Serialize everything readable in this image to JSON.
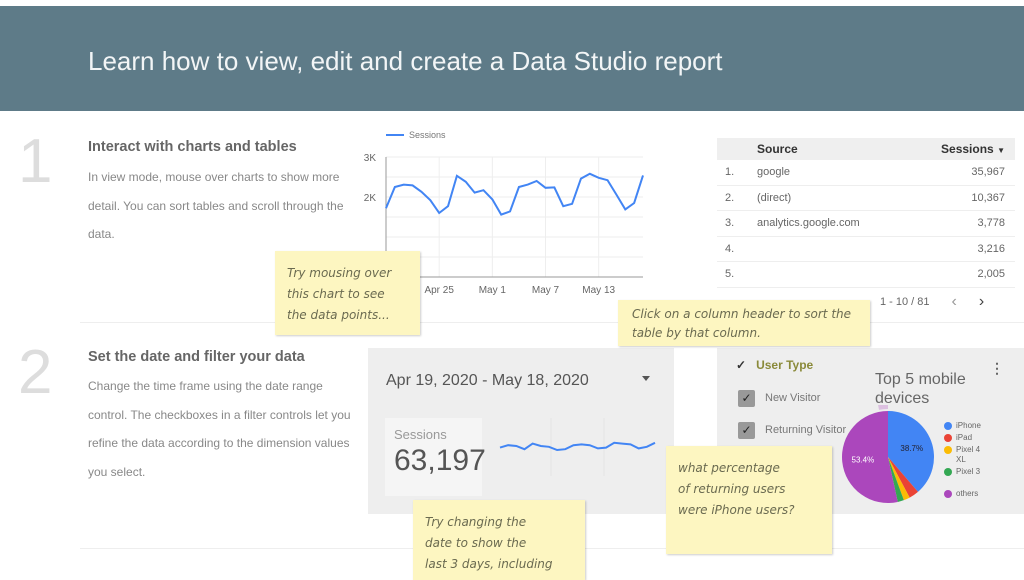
{
  "header": {
    "title": "Learn how  to view, edit and create a Data Studio report"
  },
  "sections": [
    {
      "number": "1",
      "title": "Interact with charts and tables",
      "text": "In view mode, mouse over charts to show more detail. You can sort tables and scroll through the data."
    },
    {
      "number": "2",
      "title": "Set the date and filter your data",
      "text": "Change the time frame using the date range control. The checkboxes in a filter controls let you refine the data according to the dimension values you select."
    }
  ],
  "chart_data": [
    {
      "type": "line",
      "legend": "Sessions",
      "series": [
        {
          "name": "Sessions",
          "color": "#4285f4",
          "values": [
            1720,
            2250,
            2310,
            2290,
            2130,
            1920,
            1600,
            1770,
            2530,
            2380,
            2110,
            2170,
            1940,
            1560,
            1640,
            2250,
            2310,
            2400,
            2230,
            2240,
            1770,
            1830,
            2460,
            2580,
            2480,
            2420,
            2060,
            1690,
            1850,
            2540
          ]
        }
      ],
      "x_dates": "Apr 19 - May 18",
      "x_tick_labels": [
        "Apr 25",
        "May 1",
        "May 7",
        "May 13"
      ],
      "y_tick_labels": [
        "3K",
        "2K"
      ],
      "ylim": [
        0,
        3000
      ],
      "grid": true
    },
    {
      "type": "pie",
      "title": "Top 5 mobile devices",
      "slices": [
        {
          "label": "iPhone",
          "value": 38.7,
          "color": "#4285f4",
          "data_label": "38.7%"
        },
        {
          "label": "iPad",
          "value": 3.5,
          "color": "#ea4335"
        },
        {
          "label": "Pixel 4 XL",
          "value": 2.2,
          "color": "#fbbc04"
        },
        {
          "label": "Pixel 3",
          "value": 2.2,
          "color": "#34a853"
        },
        {
          "label": "others",
          "value": 53.4,
          "color": "#ab47bc",
          "data_label": "53.4%"
        }
      ],
      "legend": "right"
    }
  ],
  "table": {
    "headers": [
      "Source",
      "Sessions"
    ],
    "sort_icon": "caret-down-icon",
    "rows": [
      [
        "1.",
        "google",
        "35,967"
      ],
      [
        "2.",
        "(direct)",
        "10,367"
      ],
      [
        "3.",
        "analytics.google.com",
        "3,778"
      ],
      [
        "4.",
        "",
        "3,216"
      ],
      [
        "5.",
        "",
        "2,005"
      ]
    ],
    "pagination": "1 - 10 / 81"
  },
  "date_range": {
    "value": "Apr 19, 2020 - May 18, 2020"
  },
  "scorecard": {
    "label": "Sessions",
    "value": "63,197"
  },
  "sparkline": [
    1.9,
    2.05,
    2.0,
    1.8,
    2.15,
    2.0,
    1.95,
    1.75,
    1.8,
    2.05,
    2.1,
    2.05,
    1.85,
    1.9,
    2.2,
    2.15,
    2.1,
    1.85,
    1.95,
    2.2
  ],
  "filter": {
    "title": "User Type",
    "options": [
      {
        "label": "New Visitor",
        "checked": true
      },
      {
        "label": "Returning Visitor",
        "checked": true
      }
    ]
  },
  "notes": [
    "Try mousing over\nthis chart to see\nthe data points...",
    "Click on a column\nheader to sort the\ntable by that\ncolumn.",
    "Try changing the\ndate to show the\nlast 3 days, including",
    "what percentage\nof returning users\nwere iPhone users?"
  ]
}
